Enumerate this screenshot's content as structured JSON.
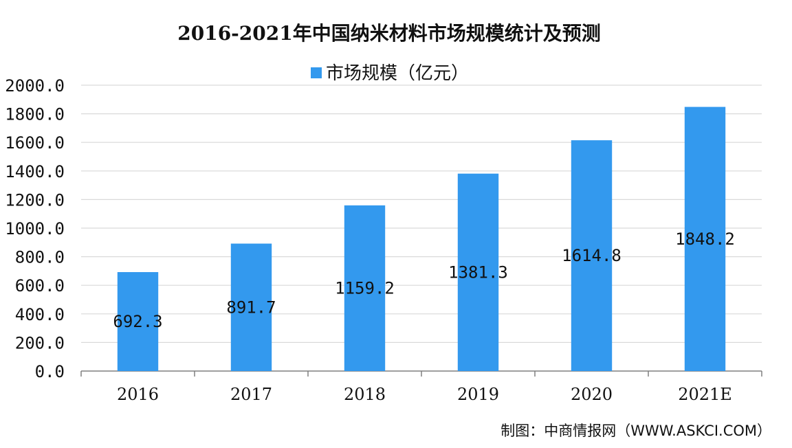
{
  "chart_data": {
    "type": "bar",
    "title": "2016-2021年中国纳米材料市场规模统计及预测",
    "categories": [
      "2016",
      "2017",
      "2018",
      "2019",
      "2020",
      "2021E"
    ],
    "series": [
      {
        "name": "市场规模（亿元）",
        "values": [
          692.3,
          891.7,
          1159.2,
          1381.3,
          1614.8,
          1848.2
        ],
        "color": "#3399ee"
      }
    ],
    "data_labels": [
      "692.3",
      "891.7",
      "1159.2",
      "1381.3",
      "1614.8",
      "1848.2"
    ],
    "yticks": [
      "0.0",
      "200.0",
      "400.0",
      "600.0",
      "800.0",
      "1000.0",
      "1200.0",
      "1400.0",
      "1600.0",
      "1800.0",
      "2000.0"
    ],
    "ylim": [
      0,
      2000
    ],
    "grid": true,
    "legend_position": "top",
    "source": "制图：中商情报网（WWW.ASKCI.COM）",
    "xlabel": "",
    "ylabel": ""
  }
}
